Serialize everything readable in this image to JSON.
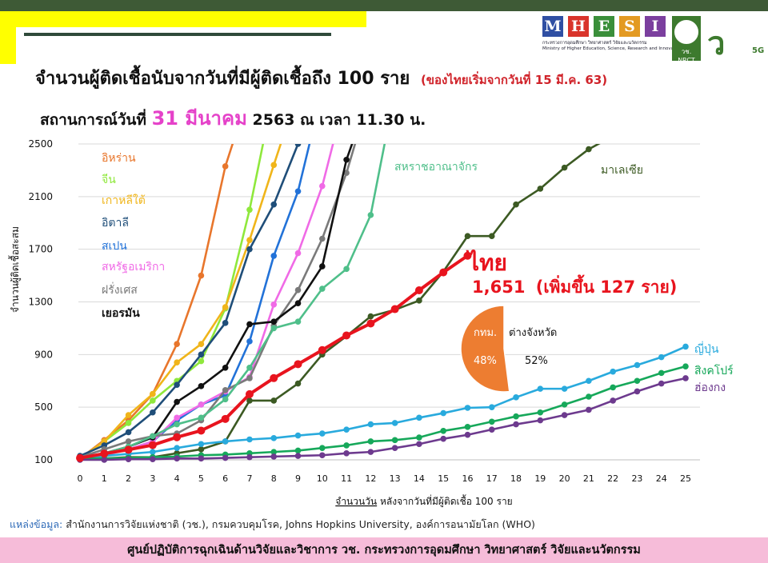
{
  "header": {
    "title": "จำนวนผู้ติดเชื้อนับจากวันที่มีผู้ติดเชื้อถึง 100 ราย",
    "title_note": "(ของไทยเริ่มจากวันที่ 15 มี.ค. 63)",
    "subtitle_prefix": "สถานการณ์วันที่",
    "subtitle_date": "31 มีนาคม",
    "subtitle_suffix": "2563 ณ เวลา 11.30 น."
  },
  "logos": {
    "mhesi_letters": [
      "M",
      "H",
      "E",
      "S",
      "I"
    ],
    "mhesi_colors": [
      "#2f4fa3",
      "#d9342b",
      "#3a8f3a",
      "#e39a22",
      "#7b3f9e"
    ],
    "mhesi_caption_th": "กระทรวงการอุดมศึกษา วิทยาศาสตร์ วิจัยและนวัตกรรม",
    "mhesi_caption_en": "Ministry of Higher Education, Science, Research and Innovation",
    "nrct_label": "วช. NRCT",
    "v5g_mark": "ว",
    "v5g_sub": "5G"
  },
  "chart_data": {
    "type": "line",
    "ylabel": "จำนวนผู้ติดเชื้อสะสม",
    "xlabel_underlined": "จำนวนวัน",
    "xlabel_rest": "หลังจากวันที่มีผู้ติดเชื้อ 100 ราย",
    "xlim": [
      0,
      25
    ],
    "ylim": [
      100,
      2500
    ],
    "yticks": [
      "100",
      "500",
      "900",
      "1300",
      "1700",
      "2100",
      "2500"
    ],
    "xticks": [
      "0",
      "1",
      "2",
      "3",
      "4",
      "5",
      "6",
      "7",
      "8",
      "9",
      "10",
      "11",
      "12",
      "13",
      "14",
      "15",
      "16",
      "17",
      "18",
      "19",
      "20",
      "21",
      "22",
      "23",
      "24",
      "25"
    ],
    "grid": "horizontal",
    "series": [
      {
        "name": "อิหร่าน",
        "color": "#e8762c",
        "values": [
          [
            0,
            110
          ],
          [
            1,
            250
          ],
          [
            2,
            400
          ],
          [
            3,
            600
          ],
          [
            4,
            980
          ],
          [
            5,
            1500
          ],
          [
            6,
            2330
          ],
          [
            7,
            2900
          ]
        ]
      },
      {
        "name": "จีน",
        "color": "#8fe83c",
        "values": [
          [
            0,
            110
          ],
          [
            1,
            240
          ],
          [
            2,
            380
          ],
          [
            3,
            550
          ],
          [
            4,
            700
          ],
          [
            5,
            850
          ],
          [
            6,
            1250
          ],
          [
            7,
            2000
          ],
          [
            8,
            2900
          ]
        ]
      },
      {
        "name": "เกาหลีใต้",
        "color": "#f0b51a",
        "values": [
          [
            0,
            110
          ],
          [
            1,
            240
          ],
          [
            2,
            440
          ],
          [
            3,
            600
          ],
          [
            4,
            840
          ],
          [
            5,
            980
          ],
          [
            6,
            1260
          ],
          [
            7,
            1770
          ],
          [
            8,
            2340
          ],
          [
            9,
            2900
          ]
        ]
      },
      {
        "name": "อิตาลี",
        "color": "#1f4e79",
        "values": [
          [
            0,
            130
          ],
          [
            1,
            210
          ],
          [
            2,
            310
          ],
          [
            3,
            460
          ],
          [
            4,
            670
          ],
          [
            5,
            900
          ],
          [
            6,
            1140
          ],
          [
            7,
            1700
          ],
          [
            8,
            2040
          ],
          [
            9,
            2500
          ],
          [
            10,
            2900
          ]
        ]
      },
      {
        "name": "สเปน",
        "color": "#2272d8",
        "values": [
          [
            0,
            110
          ],
          [
            1,
            140
          ],
          [
            2,
            180
          ],
          [
            3,
            240
          ],
          [
            4,
            400
          ],
          [
            5,
            520
          ],
          [
            6,
            590
          ],
          [
            7,
            1000
          ],
          [
            8,
            1650
          ],
          [
            9,
            2140
          ],
          [
            10,
            2900
          ]
        ]
      },
      {
        "name": "สหรัฐอเมริกา",
        "color": "#f06ae6",
        "values": [
          [
            0,
            105
          ],
          [
            1,
            135
          ],
          [
            2,
            180
          ],
          [
            3,
            240
          ],
          [
            4,
            420
          ],
          [
            5,
            520
          ],
          [
            6,
            620
          ],
          [
            7,
            730
          ],
          [
            8,
            1280
          ],
          [
            9,
            1670
          ],
          [
            10,
            2180
          ],
          [
            11,
            2900
          ]
        ]
      },
      {
        "name": "ฝรั่งเศส",
        "color": "#7a7a7a",
        "values": [
          [
            0,
            120
          ],
          [
            1,
            180
          ],
          [
            2,
            240
          ],
          [
            3,
            280
          ],
          [
            4,
            300
          ],
          [
            5,
            400
          ],
          [
            6,
            630
          ],
          [
            7,
            720
          ],
          [
            8,
            1120
          ],
          [
            9,
            1390
          ],
          [
            10,
            1780
          ],
          [
            11,
            2280
          ],
          [
            12,
            2900
          ]
        ]
      },
      {
        "name": "เยอรมัน",
        "color": "#111111",
        "values": [
          [
            0,
            110
          ],
          [
            1,
            150
          ],
          [
            2,
            200
          ],
          [
            3,
            270
          ],
          [
            4,
            540
          ],
          [
            5,
            660
          ],
          [
            6,
            800
          ],
          [
            7,
            1130
          ],
          [
            8,
            1150
          ],
          [
            9,
            1290
          ],
          [
            10,
            1570
          ],
          [
            11,
            2380
          ],
          [
            12,
            2900
          ]
        ]
      },
      {
        "name": "สหราชอาณาจักร",
        "color": "#4fbf8a",
        "values": [
          [
            0,
            110
          ],
          [
            1,
            150
          ],
          [
            2,
            200
          ],
          [
            3,
            280
          ],
          [
            4,
            370
          ],
          [
            5,
            420
          ],
          [
            6,
            560
          ],
          [
            7,
            800
          ],
          [
            8,
            1100
          ],
          [
            9,
            1150
          ],
          [
            10,
            1400
          ],
          [
            11,
            1550
          ],
          [
            12,
            1960
          ],
          [
            13,
            2900
          ]
        ]
      },
      {
        "name": "มาเลเซีย",
        "color": "#3c5a23",
        "values": [
          [
            0,
            110
          ],
          [
            1,
            110
          ],
          [
            2,
            120
          ],
          [
            3,
            120
          ],
          [
            4,
            150
          ],
          [
            5,
            180
          ],
          [
            6,
            240
          ],
          [
            7,
            550
          ],
          [
            8,
            550
          ],
          [
            9,
            680
          ],
          [
            10,
            900
          ],
          [
            11,
            1040
          ],
          [
            12,
            1190
          ],
          [
            13,
            1240
          ],
          [
            14,
            1310
          ],
          [
            15,
            1530
          ],
          [
            16,
            1800
          ],
          [
            17,
            1800
          ],
          [
            18,
            2040
          ],
          [
            19,
            2160
          ],
          [
            20,
            2320
          ],
          [
            21,
            2460
          ],
          [
            22,
            2560
          ]
        ]
      },
      {
        "name": "ไทย",
        "color": "#e8141e",
        "values": [
          [
            0,
            114
          ],
          [
            1,
            147
          ],
          [
            2,
            177
          ],
          [
            3,
            212
          ],
          [
            4,
            272
          ],
          [
            5,
            322
          ],
          [
            6,
            411
          ],
          [
            7,
            599
          ],
          [
            8,
            721
          ],
          [
            9,
            827
          ],
          [
            10,
            934
          ],
          [
            11,
            1045
          ],
          [
            12,
            1136
          ],
          [
            13,
            1245
          ],
          [
            14,
            1388
          ],
          [
            15,
            1524
          ],
          [
            16,
            1651
          ]
        ]
      },
      {
        "name": "ญี่ปุ่น",
        "color": "#29aadd",
        "values": [
          [
            0,
            105
          ],
          [
            1,
            130
          ],
          [
            2,
            145
          ],
          [
            3,
            160
          ],
          [
            4,
            190
          ],
          [
            5,
            220
          ],
          [
            6,
            240
          ],
          [
            7,
            255
          ],
          [
            8,
            265
          ],
          [
            9,
            285
          ],
          [
            10,
            300
          ],
          [
            11,
            330
          ],
          [
            12,
            370
          ],
          [
            13,
            380
          ],
          [
            14,
            420
          ],
          [
            15,
            455
          ],
          [
            16,
            495
          ],
          [
            17,
            500
          ],
          [
            18,
            575
          ],
          [
            19,
            640
          ],
          [
            20,
            640
          ],
          [
            21,
            700
          ],
          [
            22,
            770
          ],
          [
            23,
            820
          ],
          [
            24,
            880
          ],
          [
            25,
            960
          ]
        ]
      },
      {
        "name": "สิงคโปร์",
        "color": "#16a85a",
        "values": [
          [
            0,
            110
          ],
          [
            1,
            110
          ],
          [
            2,
            115
          ],
          [
            3,
            120
          ],
          [
            4,
            125
          ],
          [
            5,
            135
          ],
          [
            6,
            140
          ],
          [
            7,
            150
          ],
          [
            8,
            160
          ],
          [
            9,
            170
          ],
          [
            10,
            190
          ],
          [
            11,
            210
          ],
          [
            12,
            240
          ],
          [
            13,
            250
          ],
          [
            14,
            270
          ],
          [
            15,
            320
          ],
          [
            16,
            350
          ],
          [
            17,
            390
          ],
          [
            18,
            430
          ],
          [
            19,
            460
          ],
          [
            20,
            520
          ],
          [
            21,
            580
          ],
          [
            22,
            650
          ],
          [
            23,
            700
          ],
          [
            24,
            760
          ],
          [
            25,
            810
          ]
        ]
      },
      {
        "name": "ฮ่องกง",
        "color": "#6d3a8e",
        "values": [
          [
            0,
            100
          ],
          [
            1,
            100
          ],
          [
            2,
            105
          ],
          [
            3,
            105
          ],
          [
            4,
            110
          ],
          [
            5,
            110
          ],
          [
            6,
            115
          ],
          [
            7,
            120
          ],
          [
            8,
            125
          ],
          [
            9,
            130
          ],
          [
            10,
            135
          ],
          [
            11,
            150
          ],
          [
            12,
            160
          ],
          [
            13,
            190
          ],
          [
            14,
            220
          ],
          [
            15,
            260
          ],
          [
            16,
            290
          ],
          [
            17,
            330
          ],
          [
            18,
            370
          ],
          [
            19,
            400
          ],
          [
            20,
            440
          ],
          [
            21,
            480
          ],
          [
            22,
            550
          ],
          [
            23,
            620
          ],
          [
            24,
            680
          ],
          [
            25,
            720
          ]
        ]
      }
    ],
    "thailand_label": "ไทย",
    "thailand_count": "1,651",
    "thailand_increase": "(เพิ่มขึ้น 127 ราย)",
    "pie": {
      "slices": [
        {
          "label": "กทม.",
          "value": 48,
          "value_label": "48%",
          "color": "#4472c4"
        },
        {
          "label": "ต่างจังหวัด",
          "value": 52,
          "value_label": "52%",
          "color": "#ed7d31"
        }
      ]
    }
  },
  "source": {
    "label": "แหล่งข้อมูล:",
    "text": "สำนักงานการวิจัยแห่งชาติ (วช.), กรมควบคุมโรค, Johns Hopkins University, องค์การอนามัยโลก (WHO)"
  },
  "footer": {
    "text": "ศูนย์ปฏิบัติการฉุกเฉินด้านวิจัยและวิชาการ   วช.   กระทรวงการอุดมศึกษา วิทยาศาสตร์ วิจัยและนวัตกรรม"
  }
}
